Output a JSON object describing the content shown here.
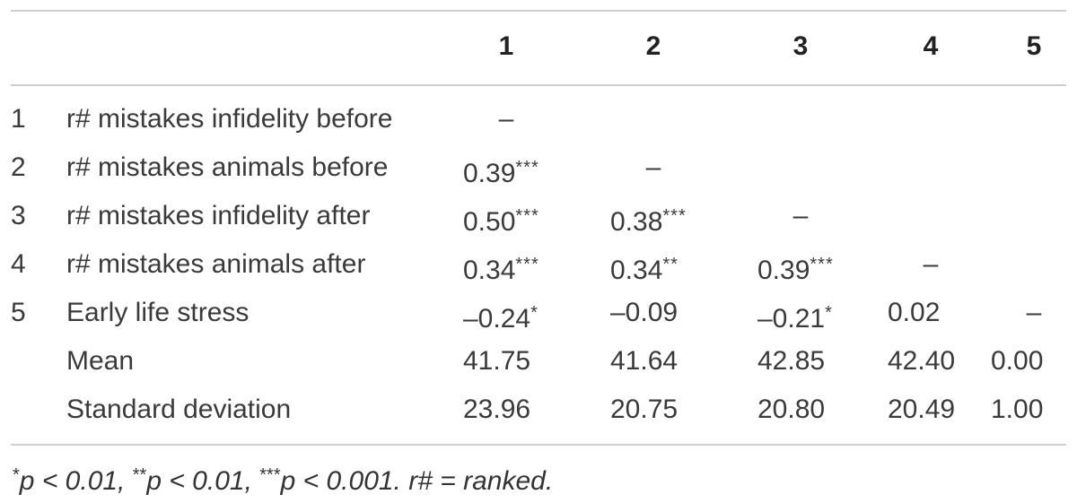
{
  "table": {
    "columns": [
      "1",
      "2",
      "3",
      "4",
      "5"
    ],
    "rows": [
      {
        "num": "1",
        "label": "r# mistakes infidelity before",
        "cells": [
          {
            "type": "dash",
            "text": "–"
          },
          null,
          null,
          null,
          null
        ]
      },
      {
        "num": "2",
        "label": "r# mistakes animals before",
        "cells": [
          {
            "type": "val",
            "text": "0.39",
            "stars": "***"
          },
          {
            "type": "dash",
            "text": "–"
          },
          null,
          null,
          null
        ]
      },
      {
        "num": "3",
        "label": "r# mistakes infidelity after",
        "cells": [
          {
            "type": "val",
            "text": "0.50",
            "stars": "***"
          },
          {
            "type": "val",
            "text": "0.38",
            "stars": "***"
          },
          {
            "type": "dash",
            "text": "–"
          },
          null,
          null
        ]
      },
      {
        "num": "4",
        "label": "r# mistakes animals after",
        "cells": [
          {
            "type": "val",
            "text": "0.34",
            "stars": "***"
          },
          {
            "type": "val",
            "text": "0.34",
            "stars": "**"
          },
          {
            "type": "val",
            "text": "0.39",
            "stars": "***"
          },
          {
            "type": "dash",
            "text": "–"
          },
          null
        ]
      },
      {
        "num": "5",
        "label": "Early life stress",
        "cells": [
          {
            "type": "val",
            "text": "–0.24",
            "stars": "*"
          },
          {
            "type": "val",
            "text": "–0.09",
            "stars": ""
          },
          {
            "type": "val",
            "text": "–0.21",
            "stars": "*"
          },
          {
            "type": "val",
            "text": "0.02",
            "stars": ""
          },
          {
            "type": "dash",
            "text": "–"
          }
        ]
      },
      {
        "num": "",
        "label": "Mean",
        "cells": [
          {
            "type": "val",
            "text": "41.75",
            "stars": ""
          },
          {
            "type": "val",
            "text": "41.64",
            "stars": ""
          },
          {
            "type": "val",
            "text": "42.85",
            "stars": ""
          },
          {
            "type": "val",
            "text": "42.40",
            "stars": ""
          },
          {
            "type": "val",
            "text": "0.00",
            "stars": ""
          }
        ]
      },
      {
        "num": "",
        "label": "Standard deviation",
        "cells": [
          {
            "type": "val",
            "text": "23.96",
            "stars": ""
          },
          {
            "type": "val",
            "text": "20.75",
            "stars": ""
          },
          {
            "type": "val",
            "text": "20.80",
            "stars": ""
          },
          {
            "type": "val",
            "text": "20.49",
            "stars": ""
          },
          {
            "type": "val",
            "text": "1.00",
            "stars": ""
          }
        ]
      }
    ]
  },
  "footnote": {
    "s1": "*",
    "p1": "p < 0.01, ",
    "s2": "**",
    "p2": "p < 0.01, ",
    "s3": "***",
    "p3": "p < 0.001. r# = ranked."
  }
}
